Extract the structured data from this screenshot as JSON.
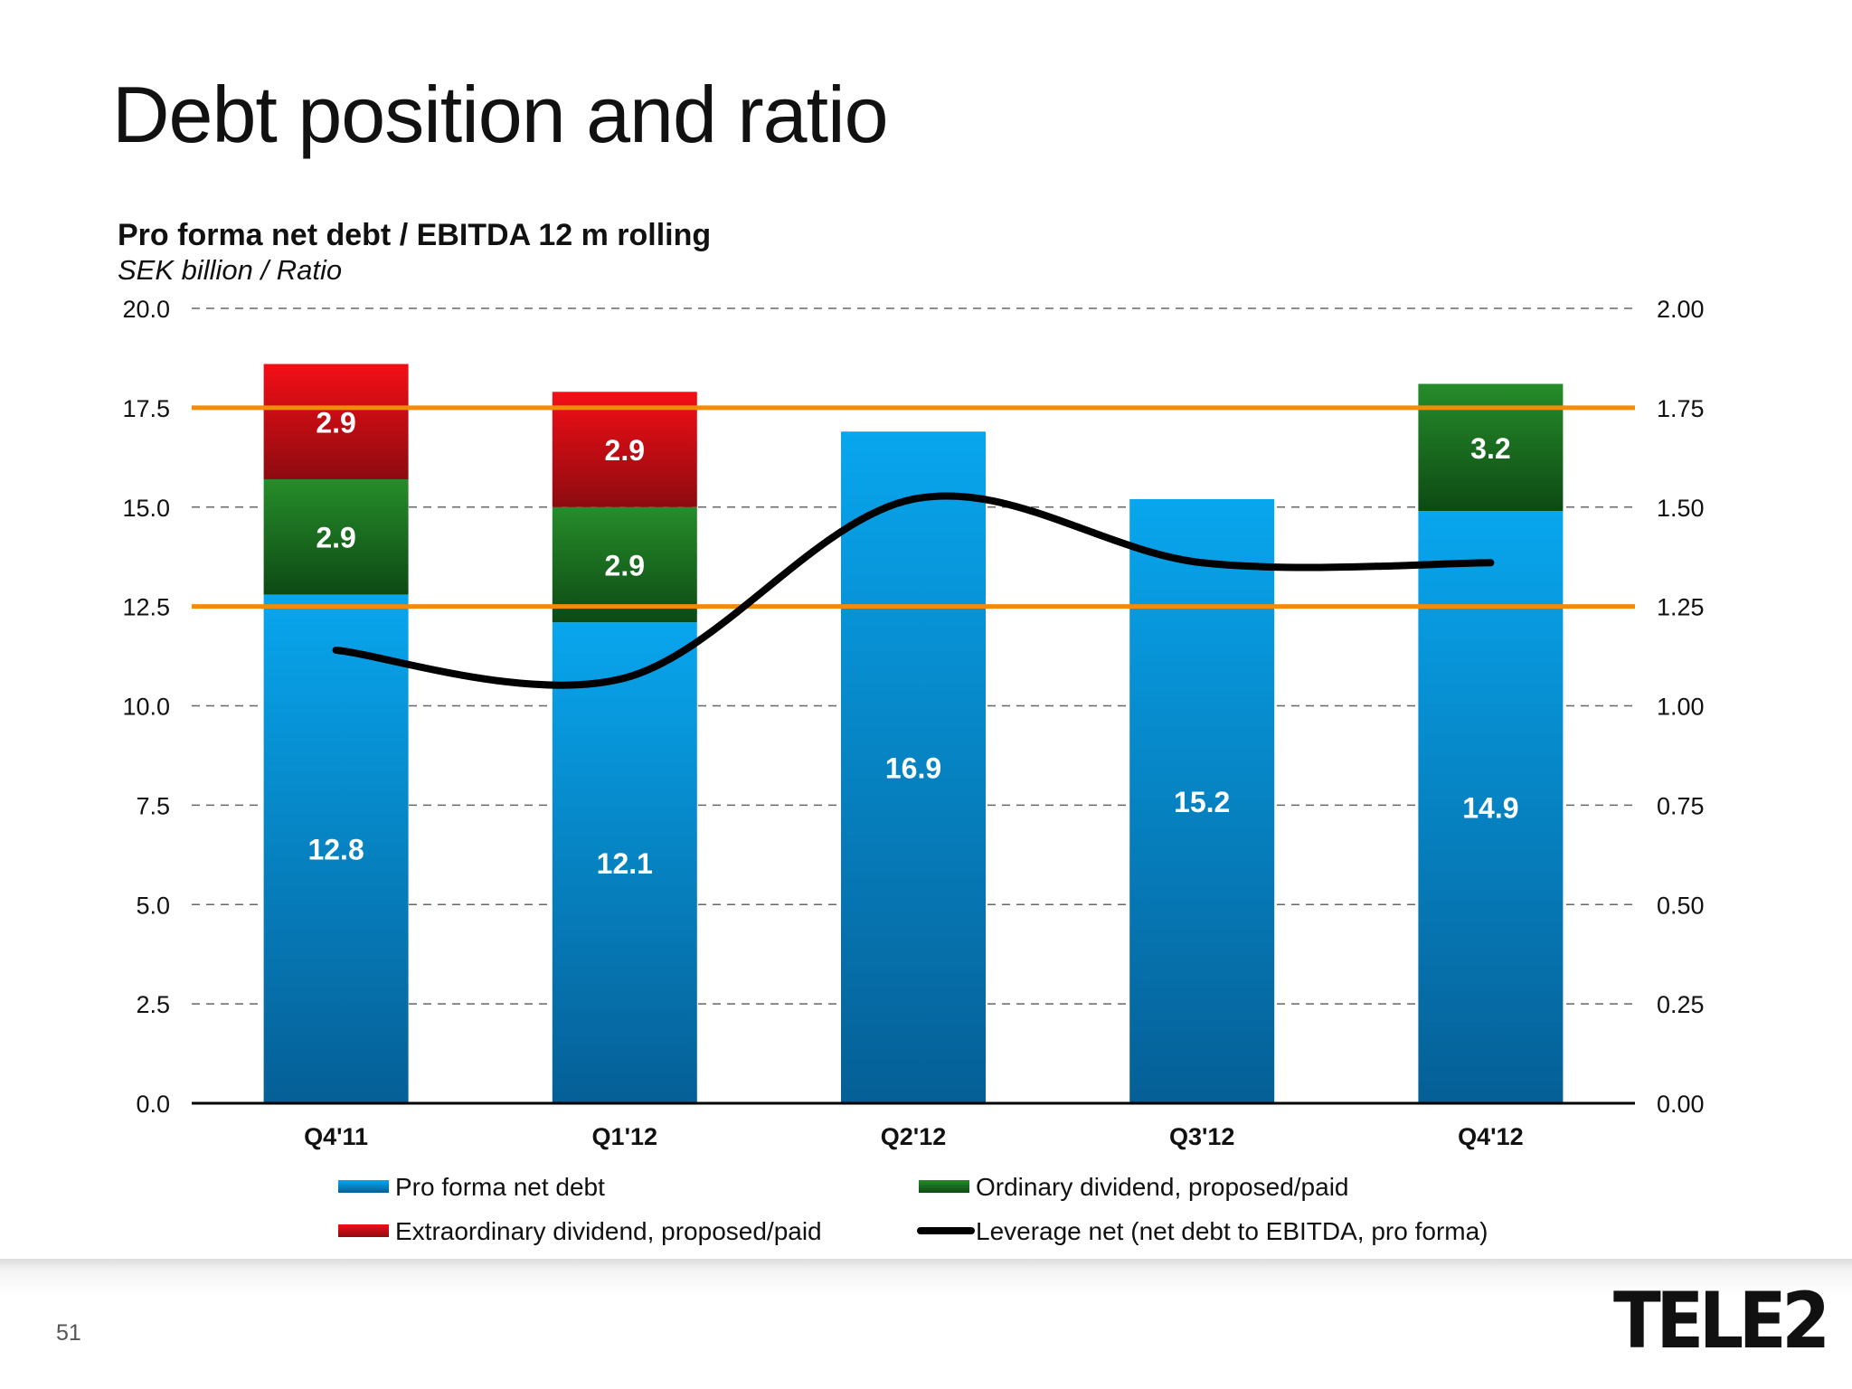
{
  "slide": {
    "title": "Debt position and ratio",
    "page_number": "51",
    "brand": "TELE2"
  },
  "colors": {
    "net_debt_top": "#08a6ee",
    "net_debt_bottom": "#055f96",
    "ordinary_top": "#268c2a",
    "ordinary_bottom": "#0d4a14",
    "extraordinary_top": "#f40e16",
    "extraordinary_bottom": "#8c0b10",
    "leverage_line": "#000000",
    "threshold_line": "#f28b0c",
    "grid": "#666666"
  },
  "chart_data": {
    "type": "bar",
    "stacked": true,
    "title": "Pro forma net debt / EBITDA 12 m rolling",
    "subtitle": "SEK billion  / Ratio",
    "categories": [
      "Q4'11",
      "Q1'12",
      "Q2'12",
      "Q3'12",
      "Q4'12"
    ],
    "ylim": [
      0,
      20
    ],
    "yticks": [
      "0.0",
      "2.5",
      "5.0",
      "7.5",
      "10.0",
      "12.5",
      "15.0",
      "17.5",
      "20.0"
    ],
    "y2lim": [
      0,
      2
    ],
    "y2ticks": [
      "0.00",
      "0.25",
      "0.50",
      "0.75",
      "1.00",
      "1.25",
      "1.50",
      "1.75",
      "2.00"
    ],
    "grid": true,
    "legend_position": "bottom",
    "series": [
      {
        "name": "Pro forma net debt",
        "values": [
          12.8,
          12.1,
          16.9,
          15.2,
          14.9
        ],
        "labels": [
          "12.8",
          "12.1",
          "16.9",
          "15.2",
          "14.9"
        ]
      },
      {
        "name": "Ordinary dividend, proposed/paid",
        "values": [
          2.9,
          2.9,
          null,
          null,
          3.2
        ],
        "labels": [
          "2.9",
          "2.9",
          "",
          "",
          "3.2"
        ]
      },
      {
        "name": "Extraordinary dividend, proposed/paid",
        "values": [
          2.9,
          2.9,
          null,
          null,
          null
        ],
        "labels": [
          "2.9",
          "2.9",
          "",
          "",
          ""
        ]
      },
      {
        "name": "Leverage net (net debt to EBITDA, pro forma)",
        "type": "line",
        "axis": "right",
        "values": [
          1.14,
          1.07,
          1.52,
          1.36,
          1.36
        ]
      }
    ],
    "reference_lines": [
      {
        "axis": "right",
        "value": 1.25
      },
      {
        "axis": "right",
        "value": 1.75
      }
    ]
  }
}
